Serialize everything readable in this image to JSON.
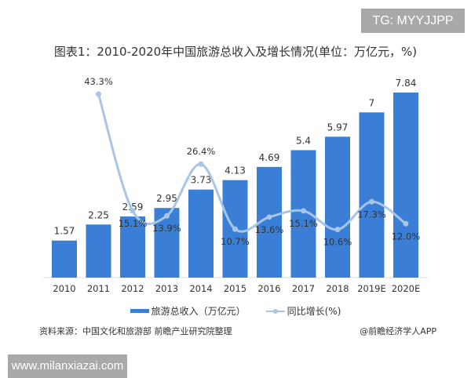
{
  "watermark_tg": "TG: MYYJJPP",
  "watermark_site": "www.milanxiazai.com",
  "source": "资料来源：中国文化和旅游部 前瞻产业研究院整理",
  "credit": "@前瞻经济学人APP",
  "chart_data": {
    "type": "bar+line",
    "title": "图表1：2010-2020年中国旅游总收入及增长情况(单位：万亿元，%)",
    "categories": [
      "2010",
      "2011",
      "2012",
      "2013",
      "2014",
      "2015",
      "2016",
      "2017",
      "2018",
      "2019E",
      "2020E"
    ],
    "series": [
      {
        "name": "旅游总收入（万亿元）",
        "type": "bar",
        "color": "#3a7fd5",
        "values": [
          1.57,
          2.25,
          2.59,
          2.95,
          3.73,
          4.13,
          4.69,
          5.4,
          5.97,
          7,
          7.84
        ],
        "labels": [
          "1.57",
          "2.25",
          "2.59",
          "2.95",
          "3.73",
          "4.13",
          "4.69",
          "5.4",
          "5.97",
          "7",
          "7.84"
        ]
      },
      {
        "name": "同比增长(%)",
        "type": "line",
        "color": "#a8c4e6",
        "values": [
          null,
          43.3,
          15.1,
          13.9,
          26.4,
          10.7,
          13.6,
          15.1,
          10.6,
          17.3,
          12.0
        ],
        "labels": [
          "",
          "43.3%",
          "15.1%",
          "13.9%",
          "26.4%",
          "10.7%",
          "13.6%",
          "15.1%",
          "10.6%",
          "17.3%",
          "12.0%"
        ]
      }
    ],
    "legend": "bottom",
    "grid": false
  }
}
